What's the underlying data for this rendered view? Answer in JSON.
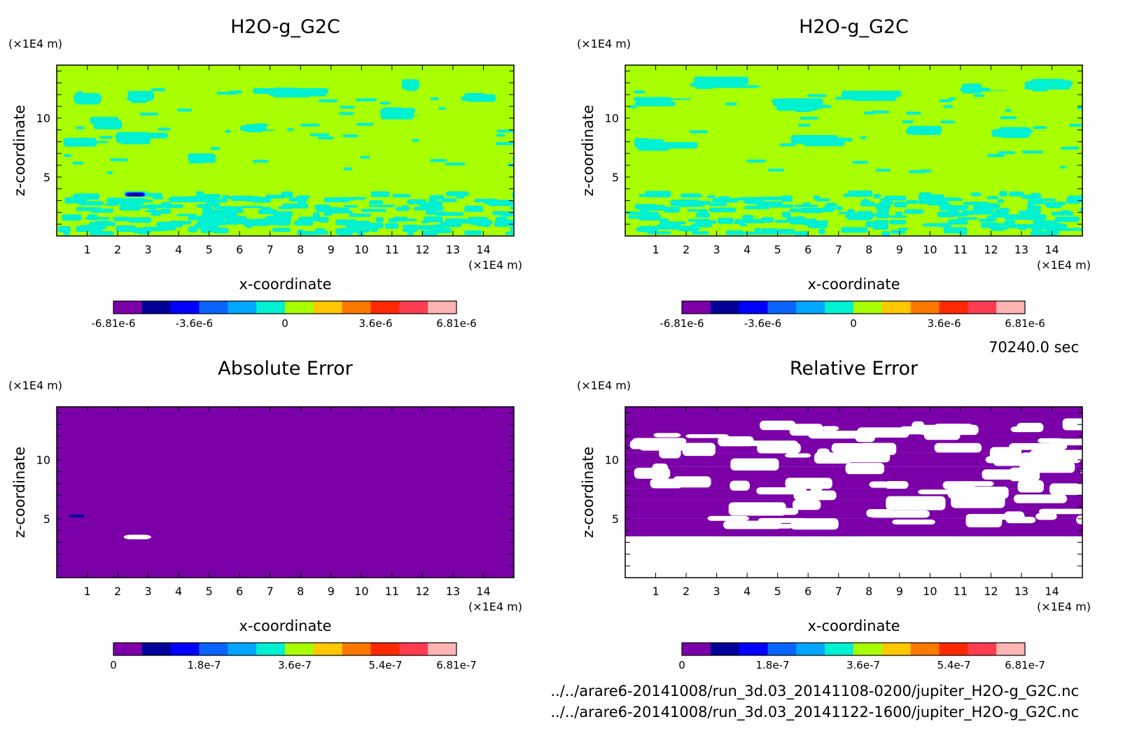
{
  "time_label": "70240.0 sec",
  "files": [
    "../../arare6-20141008/run_3d.03_20141108-0200/jupiter_H2O-g_G2C.nc",
    "../../arare6-20141008/run_3d.03_20141122-1600/jupiter_H2O-g_G2C.nc"
  ],
  "palette": [
    "#7b00a8",
    "#000099",
    "#0000ff",
    "#0a64ff",
    "#00a6ff",
    "#00f0d2",
    "#a8ff00",
    "#ffc800",
    "#ff7800",
    "#ff2800",
    "#ff3c50",
    "#ffb4b4"
  ],
  "chart_data": [
    {
      "type": "heatmap",
      "title": "H2O-g_G2C",
      "xlabel": "x-coordinate",
      "ylabel": "z-coordinate",
      "x_unit": "(×1E4 m)",
      "y_unit": "(×1E4 m)",
      "xlim": [
        0,
        15
      ],
      "ylim": [
        0,
        14.5
      ],
      "x_ticks": [
        "1",
        "2",
        "3",
        "4",
        "5",
        "6",
        "7",
        "8",
        "9",
        "10",
        "11",
        "12",
        "13",
        "14"
      ],
      "y_ticks": [
        "5",
        "10"
      ],
      "colorbar_ticks": [
        "-6.81e-6",
        "-3.6e-6",
        "0",
        "3.6e-6",
        "6.81e-6"
      ],
      "colorbar_range": [
        -6.81e-06,
        6.81e-06
      ],
      "dominant_field": "0",
      "features": "cyan (slightly negative) patches in layer z<3.5 and scattered bands 6-12.5; small dark-blue blob near x=2.6, z=3.5"
    },
    {
      "type": "heatmap",
      "title": "H2O-g_G2C",
      "xlabel": "x-coordinate",
      "ylabel": "z-coordinate",
      "x_unit": "(×1E4 m)",
      "y_unit": "(×1E4 m)",
      "xlim": [
        0,
        15
      ],
      "ylim": [
        0,
        14.5
      ],
      "x_ticks": [
        "1",
        "2",
        "3",
        "4",
        "5",
        "6",
        "7",
        "8",
        "9",
        "10",
        "11",
        "12",
        "13",
        "14"
      ],
      "y_ticks": [
        "5",
        "10"
      ],
      "colorbar_ticks": [
        "-6.81e-6",
        "-3.6e-6",
        "0",
        "3.6e-6",
        "6.81e-6"
      ],
      "colorbar_range": [
        -6.81e-06,
        6.81e-06
      ],
      "dominant_field": "0",
      "features": "cyan patches in layer z<3.5 and bands near z=10.5-12.5"
    },
    {
      "type": "heatmap",
      "title": "Absolute Error",
      "xlabel": "x-coordinate",
      "ylabel": "z-coordinate",
      "x_unit": "(×1E4 m)",
      "y_unit": "(×1E4 m)",
      "xlim": [
        0,
        15
      ],
      "ylim": [
        0,
        14.5
      ],
      "x_ticks": [
        "1",
        "2",
        "3",
        "4",
        "5",
        "6",
        "7",
        "8",
        "9",
        "10",
        "11",
        "12",
        "13",
        "14"
      ],
      "y_ticks": [
        "5",
        "10"
      ],
      "colorbar_ticks": [
        "0",
        "1.8e-7",
        "3.6e-7",
        "5.4e-7",
        "6.81e-7"
      ],
      "colorbar_range": [
        0,
        6.81e-07
      ],
      "dominant_field": "0",
      "features": "uniform purple; white spot near x=2.6, z=3.5; tiny blue spot near x=0.6, z=5.2"
    },
    {
      "type": "heatmap",
      "title": "Relative Error",
      "xlabel": "x-coordinate",
      "ylabel": "z-coordinate",
      "x_unit": "(×1E4 m)",
      "y_unit": "(×1E4 m)",
      "xlim": [
        0,
        15
      ],
      "ylim": [
        0,
        14.5
      ],
      "x_ticks": [
        "1",
        "2",
        "3",
        "4",
        "5",
        "6",
        "7",
        "8",
        "9",
        "10",
        "11",
        "12",
        "13",
        "14"
      ],
      "y_ticks": [
        "5",
        "10"
      ],
      "colorbar_ticks": [
        "0",
        "1.8e-7",
        "3.6e-7",
        "5.4e-7",
        "6.81e-7"
      ],
      "colorbar_range": [
        0,
        6.81e-07
      ],
      "dominant_field": "0",
      "features": "purple bands between z=3.5 and 14.5 interleaved with white (undefined) regions; white below z=3.5"
    }
  ]
}
